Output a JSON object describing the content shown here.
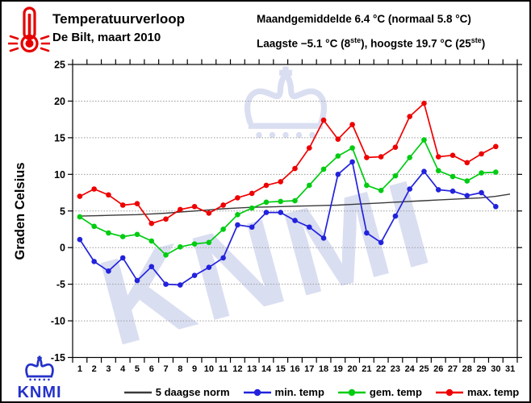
{
  "header": {
    "title": "Temperatuurverloop",
    "subtitle": "De Bilt, maart 2010",
    "stats_line1": "Maandgemiddelde 6.4 °C (normaal 5.8 °C)",
    "stats_line2": {
      "p1": "Laagste −5.1 °C (8",
      "sup1": "ste",
      "p2": "), hoogste 19.7 °C (25",
      "sup2": "ste",
      "p3": ")"
    }
  },
  "chart_data": {
    "type": "line",
    "title": "Temperatuurverloop De Bilt, maart 2010",
    "xlabel": "",
    "ylabel": "Graden Celsius",
    "ylim": [
      -15,
      25
    ],
    "yticks": [
      -15,
      -10,
      -5,
      0,
      5,
      10,
      15,
      20,
      25
    ],
    "grid": "horizontal-dotted",
    "legend_position": "bottom",
    "x": [
      1,
      2,
      3,
      4,
      5,
      6,
      7,
      8,
      9,
      10,
      11,
      12,
      13,
      14,
      15,
      16,
      17,
      18,
      19,
      20,
      21,
      22,
      23,
      24,
      25,
      26,
      27,
      28,
      29,
      30,
      31
    ],
    "series": [
      {
        "id": "norm",
        "name": "5 daagse norm",
        "color": "#3a3a3a",
        "marker": false,
        "values": [
          4.3,
          4.35,
          4.4,
          4.45,
          4.5,
          4.6,
          4.7,
          4.85,
          5.0,
          5.15,
          5.3,
          5.4,
          5.5,
          5.55,
          5.6,
          5.65,
          5.7,
          5.75,
          5.8,
          5.9,
          6.0,
          6.1,
          6.2,
          6.3,
          6.4,
          6.5,
          6.6,
          6.7,
          6.8,
          7.0,
          7.3
        ]
      },
      {
        "id": "min-temp",
        "name": "min. temp",
        "color": "#2222dd",
        "marker": true,
        "values": [
          1.1,
          -1.9,
          -3.2,
          -1.4,
          -4.5,
          -2.6,
          -5.0,
          -5.1,
          -3.8,
          -2.7,
          -1.4,
          3.1,
          2.8,
          4.8,
          4.8,
          3.7,
          2.8,
          1.3,
          10.0,
          11.7,
          2.0,
          0.7,
          4.3,
          8.0,
          10.4,
          7.9,
          7.7,
          7.1,
          7.5,
          5.6,
          null
        ]
      },
      {
        "id": "gem-temp",
        "name": "gem. temp",
        "color": "#00cc11",
        "marker": true,
        "values": [
          4.2,
          2.9,
          2.0,
          1.5,
          1.8,
          0.9,
          -1.0,
          0.1,
          0.5,
          0.7,
          2.5,
          4.5,
          5.4,
          6.2,
          6.3,
          6.4,
          8.5,
          10.7,
          12.5,
          13.6,
          8.5,
          7.8,
          9.8,
          12.3,
          14.7,
          10.5,
          9.7,
          9.1,
          10.2,
          10.3,
          null
        ]
      },
      {
        "id": "max-temp",
        "name": "max. temp",
        "color": "#ee0000",
        "marker": true,
        "values": [
          7.0,
          8.0,
          7.2,
          5.8,
          6.0,
          3.3,
          3.9,
          5.2,
          5.6,
          4.7,
          5.8,
          6.8,
          7.4,
          8.5,
          9.0,
          10.8,
          13.6,
          17.4,
          14.8,
          16.8,
          12.3,
          12.4,
          13.7,
          17.9,
          19.7,
          12.4,
          12.6,
          11.6,
          12.8,
          13.8,
          null
        ]
      }
    ]
  },
  "watermark": {
    "text": "KNMI",
    "color": "#dadef1"
  },
  "logo": {
    "text": "KNMI",
    "color": "#2432c9"
  }
}
